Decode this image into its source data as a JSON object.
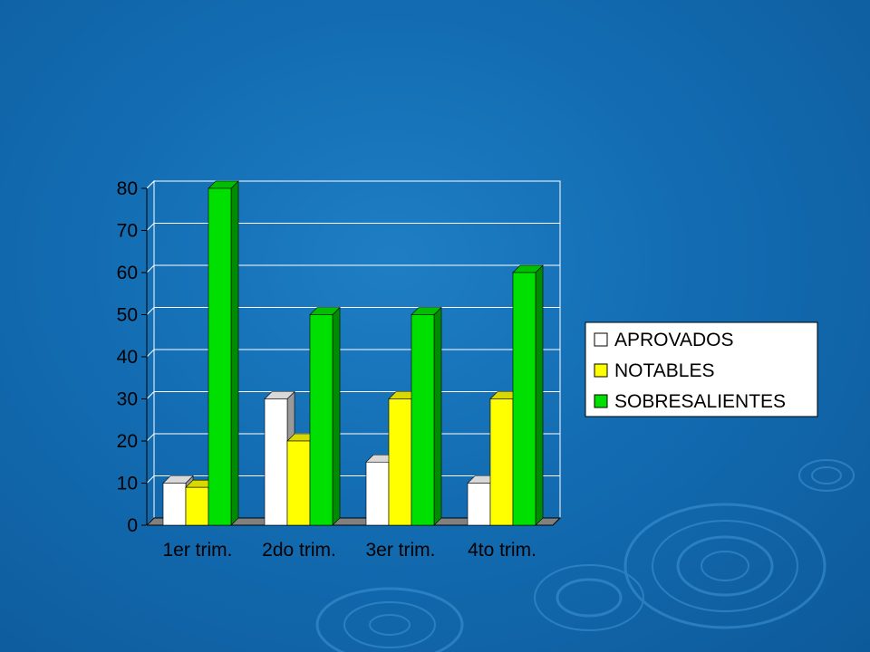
{
  "chart_data": {
    "type": "bar",
    "categories": [
      "1er trim.",
      "2do trim.",
      "3er trim.",
      "4to trim."
    ],
    "series": [
      {
        "name": "APROVADOS",
        "values": [
          10,
          30,
          15,
          10
        ],
        "color": "#ffffff"
      },
      {
        "name": "NOTABLES",
        "values": [
          9,
          20,
          30,
          30
        ],
        "color": "#ffff00"
      },
      {
        "name": "SOBRESALIENTES",
        "values": [
          80,
          50,
          50,
          60
        ],
        "color": "#00e000"
      }
    ],
    "yticks": [
      "0",
      "10",
      "20",
      "30",
      "40",
      "50",
      "60",
      "70",
      "80"
    ],
    "ylim": [
      0,
      80
    ],
    "grid": true,
    "legend": "right",
    "style": "3d-bar"
  }
}
